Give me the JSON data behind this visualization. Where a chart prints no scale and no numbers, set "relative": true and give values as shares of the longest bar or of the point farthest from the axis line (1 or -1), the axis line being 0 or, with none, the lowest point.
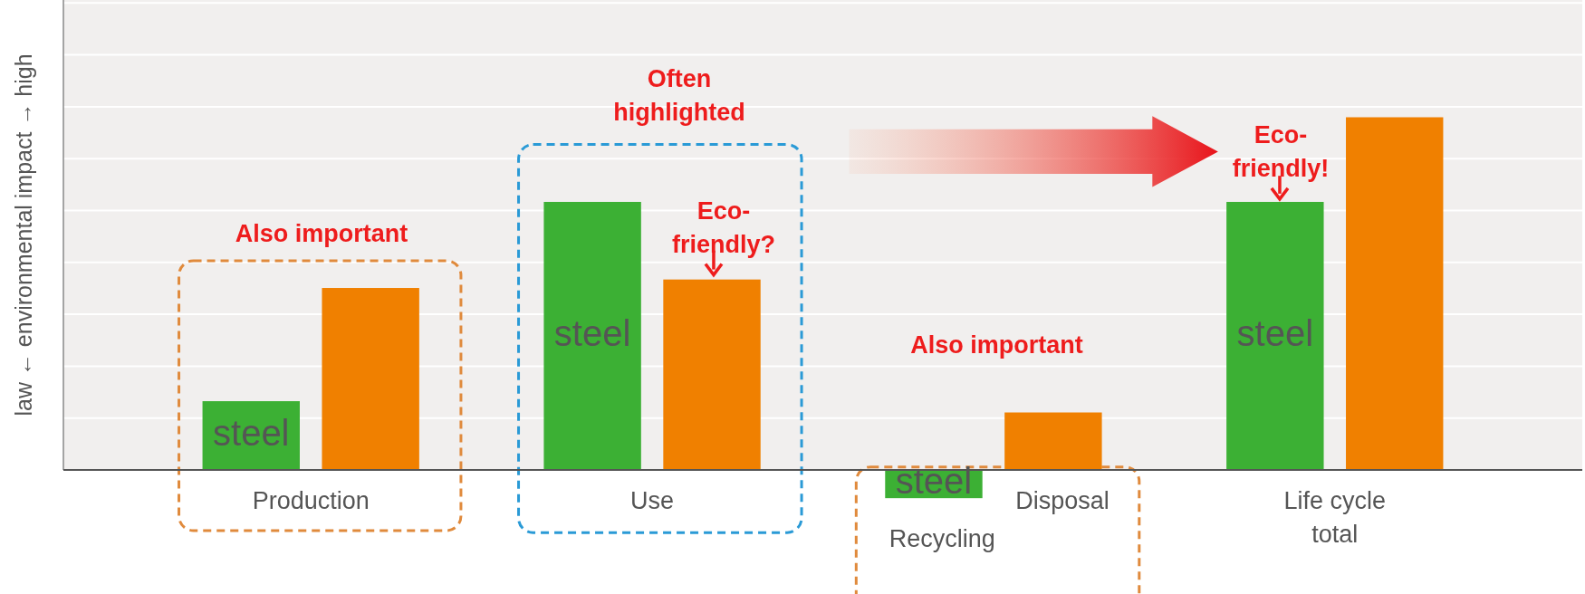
{
  "chart_data": {
    "type": "bar",
    "ylabel": "law ← environmental impact → high",
    "relative": true,
    "grid": true,
    "categories": [
      "Production",
      "Use",
      null,
      "Life cycle total"
    ],
    "series": [
      {
        "name": "steel",
        "color": "#3cb034",
        "values": [
          0.195,
          0.76,
          -0.08,
          0.76
        ]
      },
      {
        "color": "#f08000",
        "values": [
          0.516,
          0.54,
          0.163,
          1
        ]
      }
    ],
    "annotations": [
      "Also important",
      "Often highlighted",
      "Eco-friendly?",
      "Eco-friendly!",
      "Also important",
      "Recycling",
      "Disposal"
    ]
  }
}
